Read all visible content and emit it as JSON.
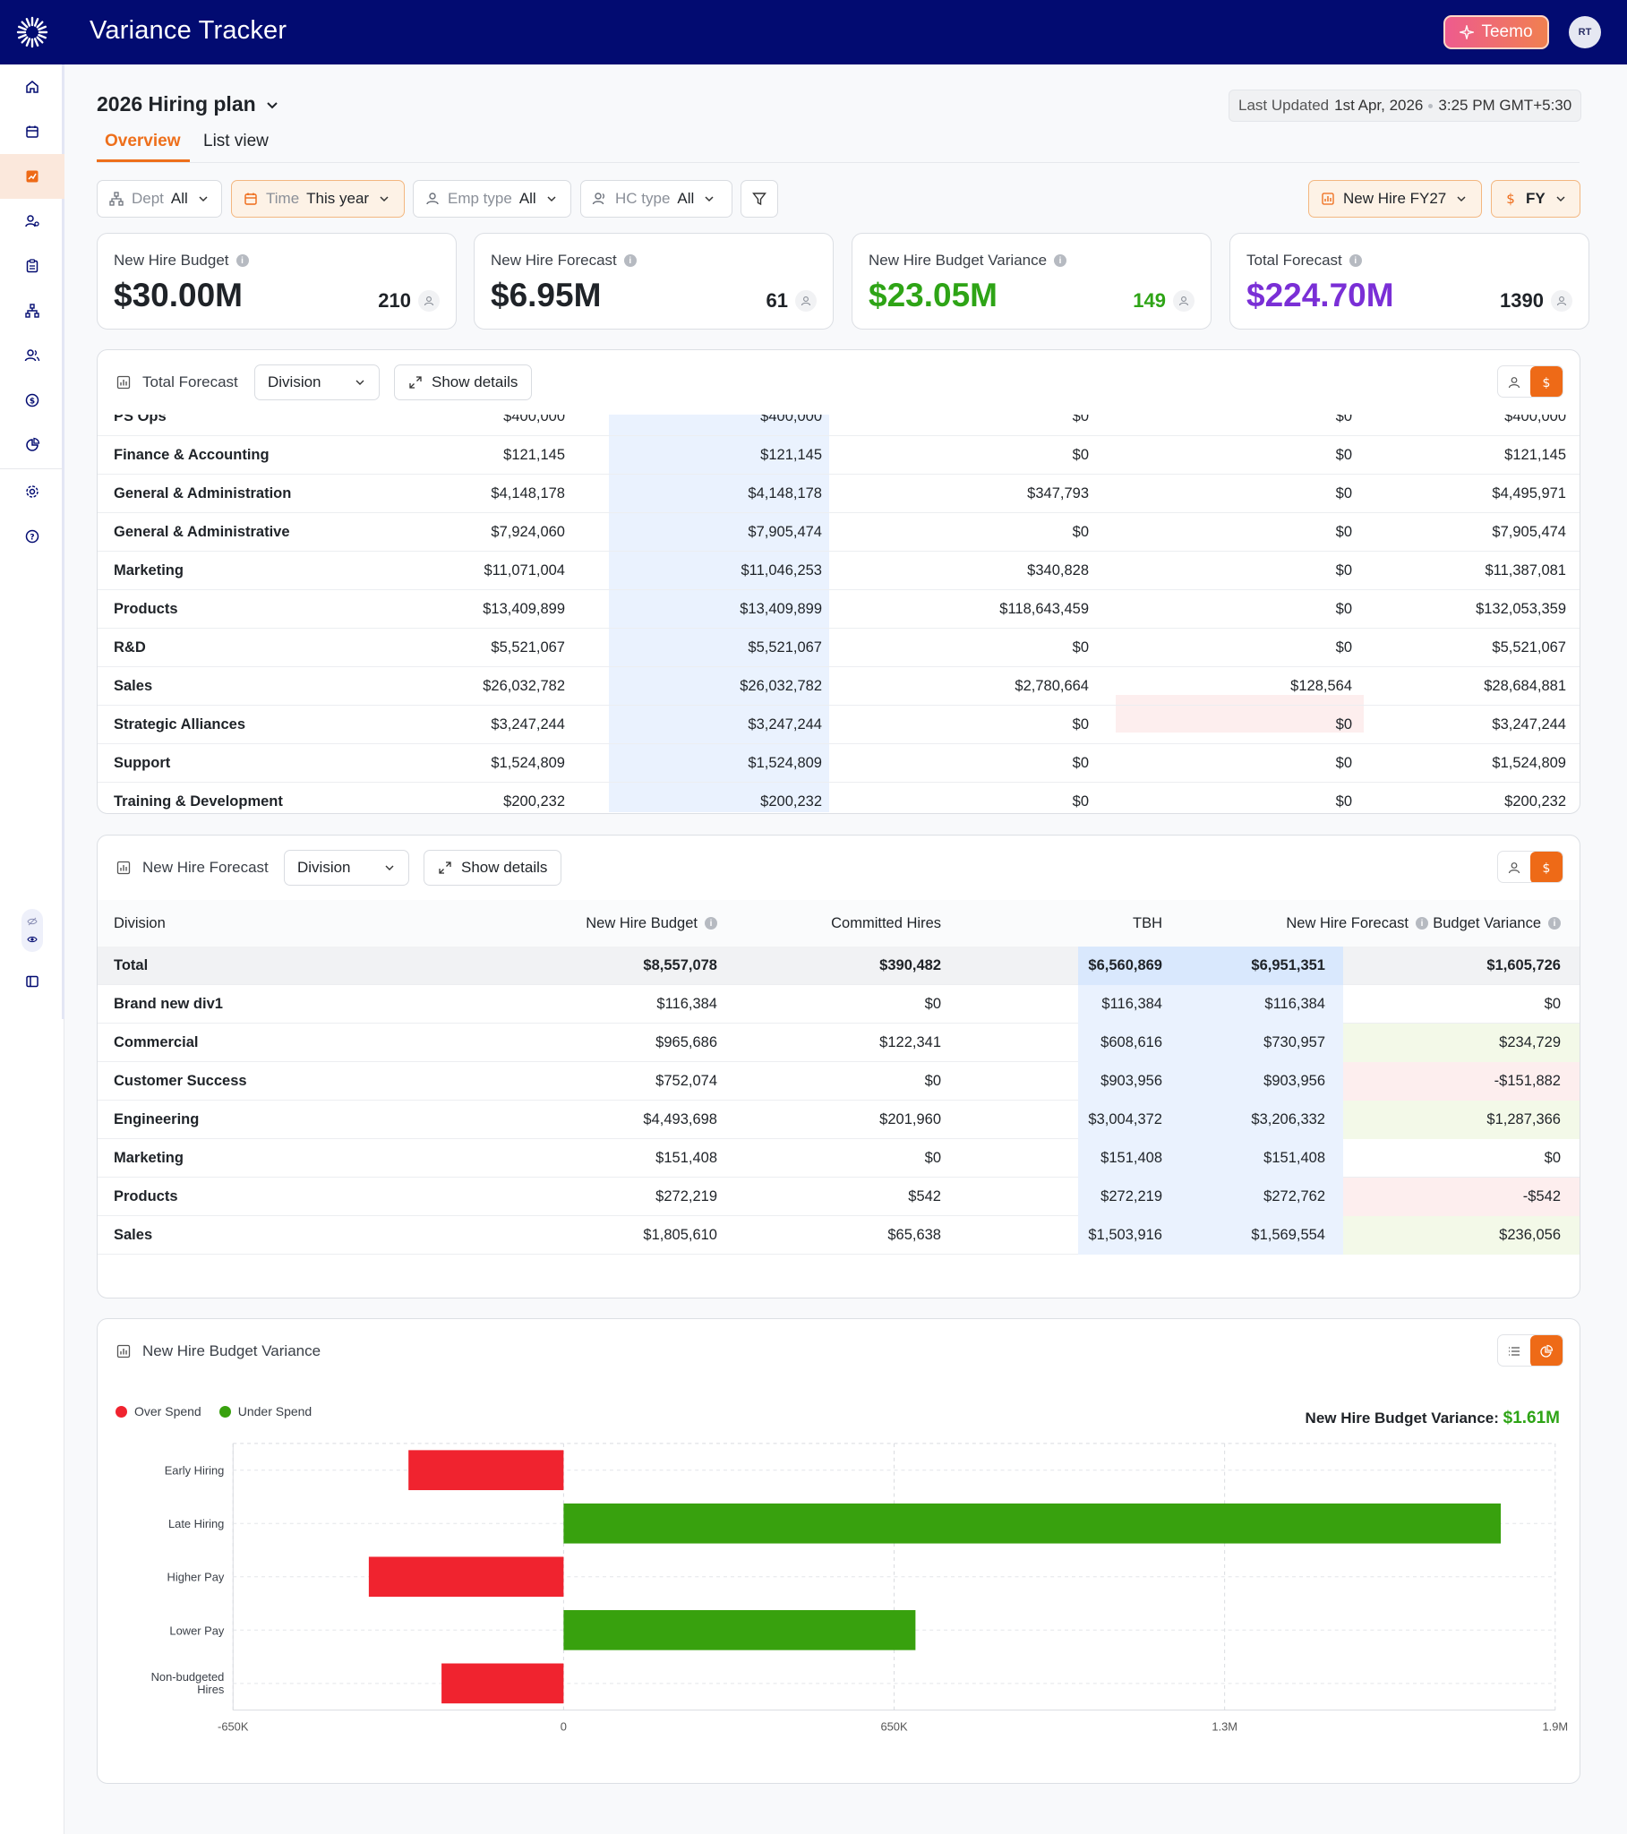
{
  "app": {
    "title": "Variance Tracker",
    "assistant_label": "Teemo",
    "user_initials": "RT"
  },
  "header": {
    "plan_title": "2026 Hiring plan",
    "last_updated_label": "Last Updated",
    "last_updated_date": "1st Apr, 2026",
    "last_updated_time": "3:25 PM GMT+5:30",
    "tabs": [
      "Overview",
      "List view"
    ],
    "active_tab": "Overview"
  },
  "filters": {
    "dept": {
      "label": "Dept",
      "value": "All"
    },
    "time": {
      "label": "Time",
      "value": "This year"
    },
    "emp_type": {
      "label": "Emp type",
      "value": "All"
    },
    "hc_type": {
      "label": "HC type",
      "value": "All"
    },
    "scenario": "New Hire FY27",
    "period": "FY"
  },
  "kpis": [
    {
      "label": "New Hire Budget",
      "value": "$30.00M",
      "count": "210",
      "color": "#1f2328"
    },
    {
      "label": "New Hire Forecast",
      "value": "$6.95M",
      "count": "61",
      "color": "#1f2328"
    },
    {
      "label": "New Hire Budget Variance",
      "value": "$23.05M",
      "count": "149",
      "color": "#2ea416"
    },
    {
      "label": "Total Forecast",
      "value": "$224.70M",
      "count": "1390",
      "color": "#7a2fd6"
    }
  ],
  "total_forecast_panel": {
    "title": "Total Forecast",
    "group_by": "Division",
    "details_label": "Show details",
    "rows": [
      [
        "PS Ops",
        "$400,000",
        "$400,000",
        "$0",
        "$0",
        "$400,000"
      ],
      [
        "Finance & Accounting",
        "$121,145",
        "$121,145",
        "$0",
        "$0",
        "$121,145"
      ],
      [
        "General & Administration",
        "$4,148,178",
        "$4,148,178",
        "$347,793",
        "$0",
        "$4,495,971"
      ],
      [
        "General & Administrative",
        "$7,924,060",
        "$7,905,474",
        "$0",
        "$0",
        "$7,905,474"
      ],
      [
        "Marketing",
        "$11,071,004",
        "$11,046,253",
        "$340,828",
        "$0",
        "$11,387,081"
      ],
      [
        "Products",
        "$13,409,899",
        "$13,409,899",
        "$118,643,459",
        "$0",
        "$132,053,359"
      ],
      [
        "R&D",
        "$5,521,067",
        "$5,521,067",
        "$0",
        "$0",
        "$5,521,067"
      ],
      [
        "Sales",
        "$26,032,782",
        "$26,032,782",
        "$2,780,664",
        "$128,564",
        "$28,684,881"
      ],
      [
        "Strategic Alliances",
        "$3,247,244",
        "$3,247,244",
        "$0",
        "$0",
        "$3,247,244"
      ],
      [
        "Support",
        "$1,524,809",
        "$1,524,809",
        "$0",
        "$0",
        "$1,524,809"
      ],
      [
        "Training & Development",
        "$200,232",
        "$200,232",
        "$0",
        "$0",
        "$200,232"
      ]
    ]
  },
  "new_hire_forecast_panel": {
    "title": "New Hire Forecast",
    "group_by": "Division",
    "details_label": "Show details",
    "columns": [
      "Division",
      "New Hire Budget",
      "Committed Hires",
      "TBH",
      "New Hire Forecast",
      "Budget Variance"
    ],
    "total": [
      "Total",
      "$8,557,078",
      "$390,482",
      "$6,560,869",
      "$6,951,351",
      "$1,605,726"
    ],
    "rows": [
      [
        "Brand new div1",
        "$116,384",
        "$0",
        "$116,384",
        "$116,384",
        "$0"
      ],
      [
        "Commercial",
        "$965,686",
        "$122,341",
        "$608,616",
        "$730,957",
        "$234,729"
      ],
      [
        "Customer Success",
        "$752,074",
        "$0",
        "$903,956",
        "$903,956",
        "-$151,882"
      ],
      [
        "Engineering",
        "$4,493,698",
        "$201,960",
        "$3,004,372",
        "$3,206,332",
        "$1,287,366"
      ],
      [
        "Marketing",
        "$151,408",
        "$0",
        "$151,408",
        "$151,408",
        "$0"
      ],
      [
        "Products",
        "$272,219",
        "$542",
        "$272,219",
        "$272,762",
        "-$542"
      ],
      [
        "Sales",
        "$1,805,610",
        "$65,638",
        "$1,503,916",
        "$1,569,554",
        "$236,056"
      ]
    ],
    "variance_status": [
      "neutral",
      "positive",
      "negative",
      "positive",
      "neutral",
      "negative",
      "positive"
    ]
  },
  "variance_panel": {
    "title": "New Hire Budget Variance",
    "summary_label": "New Hire Budget Variance:",
    "summary_value": "$1.61M",
    "legend": [
      {
        "name": "Over Spend",
        "color": "#f0232f"
      },
      {
        "name": "Under Spend",
        "color": "#38a10e"
      }
    ],
    "chart_data": {
      "type": "bar",
      "orientation": "horizontal",
      "categories": [
        "Early Hiring",
        "Late Hiring",
        "Higher Pay",
        "Lower Pay",
        "Non-budgeted Hires"
      ],
      "values": [
        -305000,
        1843000,
        -383000,
        692000,
        -240000
      ],
      "xlim": [
        -650000,
        1950000
      ],
      "x_ticks": [
        -650000,
        0,
        650000,
        1300000,
        1950000
      ],
      "x_tick_labels": [
        "-650K",
        "0",
        "650K",
        "1.3M",
        "1.9M"
      ],
      "grid": true,
      "legend_position": "top-left"
    }
  }
}
